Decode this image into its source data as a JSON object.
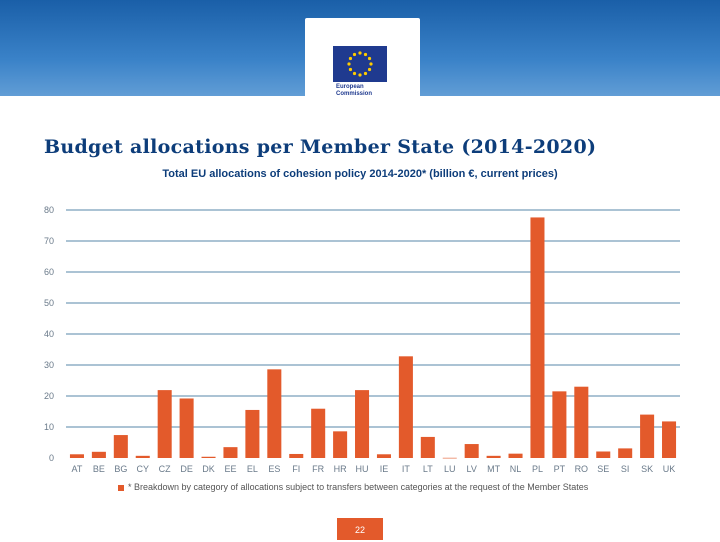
{
  "slide_title": "Budget allocations per Member State (2014-2020)",
  "footnote": "* Breakdown by category of allocations subject to transfers between categories at the request of the Member States",
  "page_number": "22",
  "logo_text_line1": "European",
  "logo_text_line2": "Commission",
  "colors": {
    "bar": "#e35a2b",
    "grid": "#1f5f8b",
    "axis_text": "#6a7a8a"
  },
  "chart_data": {
    "type": "bar",
    "title": "Total EU allocations of cohesion policy 2014-2020* (billion €, current prices)",
    "xlabel": "",
    "ylabel": "",
    "ylim": [
      0,
      80
    ],
    "yticks": [
      0,
      10,
      20,
      30,
      40,
      50,
      60,
      70,
      80
    ],
    "grid": true,
    "categories": [
      "AT",
      "BE",
      "BG",
      "CY",
      "CZ",
      "DE",
      "DK",
      "EE",
      "EL",
      "ES",
      "FI",
      "FR",
      "HR",
      "HU",
      "IE",
      "IT",
      "LT",
      "LU",
      "LV",
      "MT",
      "NL",
      "PL",
      "PT",
      "RO",
      "SE",
      "SI",
      "SK",
      "UK"
    ],
    "values": [
      1.2,
      2.0,
      7.4,
      0.7,
      21.9,
      19.2,
      0.4,
      3.5,
      15.5,
      28.6,
      1.3,
      15.9,
      8.6,
      21.9,
      1.2,
      32.8,
      6.8,
      0.06,
      4.5,
      0.7,
      1.4,
      77.6,
      21.5,
      23.0,
      2.1,
      3.1,
      14.0,
      11.8
    ]
  }
}
